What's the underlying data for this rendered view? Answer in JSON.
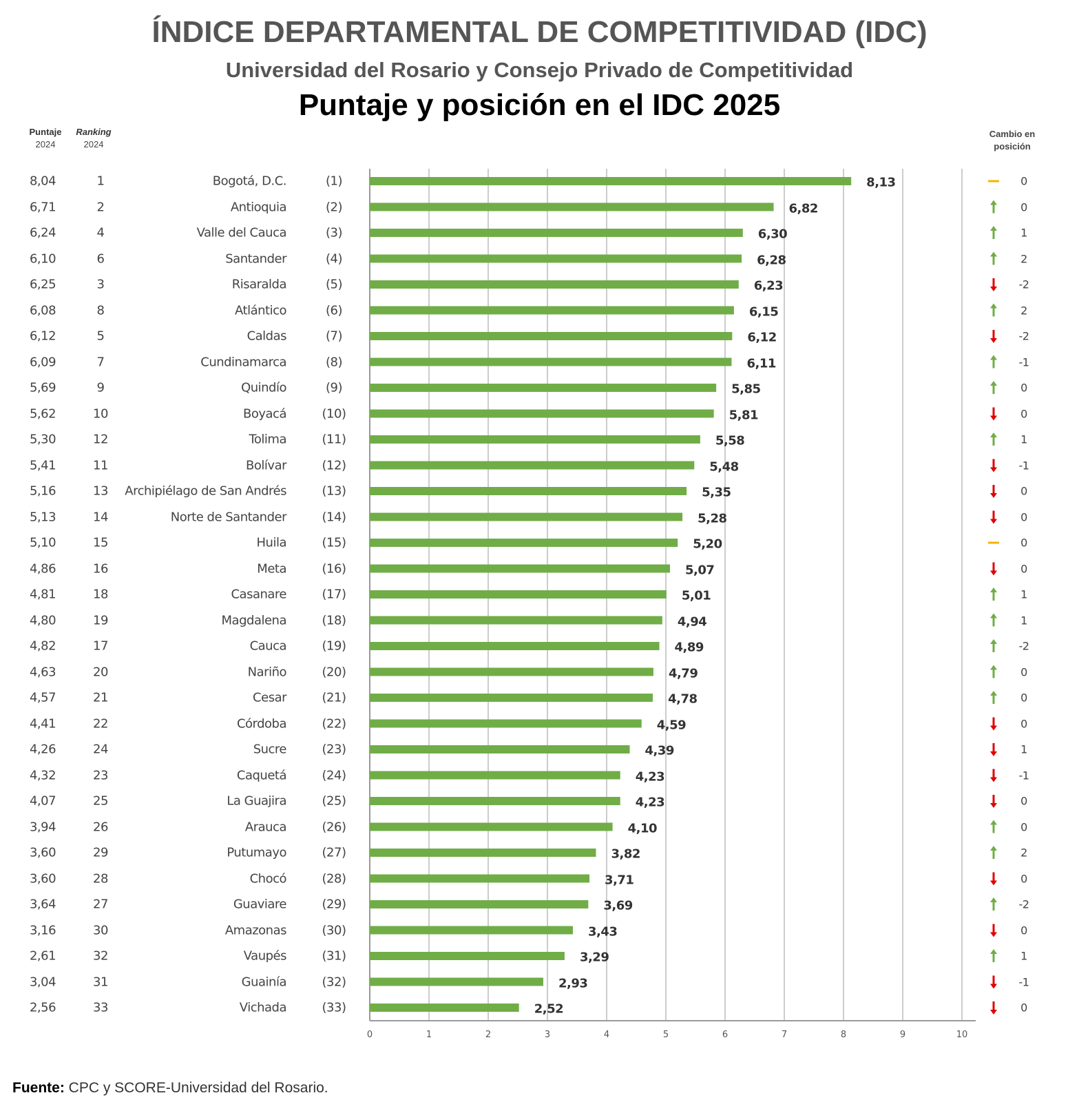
{
  "title": "ÍNDICE DEPARTAMENTAL DE COMPETITIVIDAD (IDC)",
  "subtitle": "Universidad del Rosario y Consejo Privado de Competitividad",
  "chart_title": "Puntaje y posición en el IDC 2025",
  "headers": {
    "score_label": "Puntaje",
    "score_year": "2024",
    "rank_label": "Ranking",
    "rank_year": "2024",
    "change_line1": "Cambio en",
    "change_line2": "posición"
  },
  "source_label": "Fuente:",
  "source_text": "CPC y SCORE-Universidad del Rosario.",
  "colors": {
    "bar": "#70ad47",
    "up": "#70ad47",
    "down": "#e00000",
    "same": "#f5b400"
  },
  "chart_data": {
    "type": "bar",
    "orientation": "horizontal",
    "title": "Puntaje y posición en el IDC 2025",
    "xlim": [
      0,
      10
    ],
    "xticks": [
      "0",
      "1",
      "2",
      "3",
      "4",
      "5",
      "6",
      "7",
      "8",
      "9",
      "10"
    ],
    "grid": true,
    "rows": [
      {
        "score_2024": "8,04",
        "rank_2024": "1",
        "name": "Bogotá, D.C.",
        "rank_2025": "(1)",
        "value": 8.13,
        "label": "8,13",
        "trend": "same",
        "change": "0"
      },
      {
        "score_2024": "6,71",
        "rank_2024": "2",
        "name": "Antioquia",
        "rank_2025": "(2)",
        "value": 6.82,
        "label": "6,82",
        "trend": "up",
        "change": "0"
      },
      {
        "score_2024": "6,24",
        "rank_2024": "4",
        "name": "Valle del Cauca",
        "rank_2025": "(3)",
        "value": 6.3,
        "label": "6,30",
        "trend": "up",
        "change": "1"
      },
      {
        "score_2024": "6,10",
        "rank_2024": "6",
        "name": "Santander",
        "rank_2025": "(4)",
        "value": 6.28,
        "label": "6,28",
        "trend": "up",
        "change": "2"
      },
      {
        "score_2024": "6,25",
        "rank_2024": "3",
        "name": "Risaralda",
        "rank_2025": "(5)",
        "value": 6.23,
        "label": "6,23",
        "trend": "down",
        "change": "-2"
      },
      {
        "score_2024": "6,08",
        "rank_2024": "8",
        "name": "Atlántico",
        "rank_2025": "(6)",
        "value": 6.15,
        "label": "6,15",
        "trend": "up",
        "change": "2"
      },
      {
        "score_2024": "6,12",
        "rank_2024": "5",
        "name": "Caldas",
        "rank_2025": "(7)",
        "value": 6.12,
        "label": "6,12",
        "trend": "down",
        "change": "-2"
      },
      {
        "score_2024": "6,09",
        "rank_2024": "7",
        "name": "Cundinamarca",
        "rank_2025": "(8)",
        "value": 6.11,
        "label": "6,11",
        "trend": "up",
        "change": "-1"
      },
      {
        "score_2024": "5,69",
        "rank_2024": "9",
        "name": "Quindío",
        "rank_2025": "(9)",
        "value": 5.85,
        "label": "5,85",
        "trend": "up",
        "change": "0"
      },
      {
        "score_2024": "5,62",
        "rank_2024": "10",
        "name": "Boyacá",
        "rank_2025": "(10)",
        "value": 5.81,
        "label": "5,81",
        "trend": "down",
        "change": "0"
      },
      {
        "score_2024": "5,30",
        "rank_2024": "12",
        "name": "Tolima",
        "rank_2025": "(11)",
        "value": 5.58,
        "label": "5,58",
        "trend": "up",
        "change": "1"
      },
      {
        "score_2024": "5,41",
        "rank_2024": "11",
        "name": "Bolívar",
        "rank_2025": "(12)",
        "value": 5.48,
        "label": "5,48",
        "trend": "down",
        "change": "-1"
      },
      {
        "score_2024": "5,16",
        "rank_2024": "13",
        "name": "Archipiélago de San Andrés",
        "rank_2025": "(13)",
        "value": 5.35,
        "label": "5,35",
        "trend": "down",
        "change": "0"
      },
      {
        "score_2024": "5,13",
        "rank_2024": "14",
        "name": "Norte de Santander",
        "rank_2025": "(14)",
        "value": 5.28,
        "label": "5,28",
        "trend": "down",
        "change": "0"
      },
      {
        "score_2024": "5,10",
        "rank_2024": "15",
        "name": "Huila",
        "rank_2025": "(15)",
        "value": 5.2,
        "label": "5,20",
        "trend": "same",
        "change": "0"
      },
      {
        "score_2024": "4,86",
        "rank_2024": "16",
        "name": "Meta",
        "rank_2025": "(16)",
        "value": 5.07,
        "label": "5,07",
        "trend": "down",
        "change": "0"
      },
      {
        "score_2024": "4,81",
        "rank_2024": "18",
        "name": "Casanare",
        "rank_2025": "(17)",
        "value": 5.01,
        "label": "5,01",
        "trend": "up",
        "change": "1"
      },
      {
        "score_2024": "4,80",
        "rank_2024": "19",
        "name": "Magdalena",
        "rank_2025": "(18)",
        "value": 4.94,
        "label": "4,94",
        "trend": "up",
        "change": "1"
      },
      {
        "score_2024": "4,82",
        "rank_2024": "17",
        "name": "Cauca",
        "rank_2025": "(19)",
        "value": 4.89,
        "label": "4,89",
        "trend": "up",
        "change": "-2"
      },
      {
        "score_2024": "4,63",
        "rank_2024": "20",
        "name": "Nariño",
        "rank_2025": "(20)",
        "value": 4.79,
        "label": "4,79",
        "trend": "up",
        "change": "0"
      },
      {
        "score_2024": "4,57",
        "rank_2024": "21",
        "name": "Cesar",
        "rank_2025": "(21)",
        "value": 4.78,
        "label": "4,78",
        "trend": "up",
        "change": "0"
      },
      {
        "score_2024": "4,41",
        "rank_2024": "22",
        "name": "Córdoba",
        "rank_2025": "(22)",
        "value": 4.59,
        "label": "4,59",
        "trend": "down",
        "change": "0"
      },
      {
        "score_2024": "4,26",
        "rank_2024": "24",
        "name": "Sucre",
        "rank_2025": "(23)",
        "value": 4.39,
        "label": "4,39",
        "trend": "down",
        "change": "1"
      },
      {
        "score_2024": "4,32",
        "rank_2024": "23",
        "name": "Caquetá",
        "rank_2025": "(24)",
        "value": 4.23,
        "label": "4,23",
        "trend": "down",
        "change": "-1"
      },
      {
        "score_2024": "4,07",
        "rank_2024": "25",
        "name": "La Guajira",
        "rank_2025": "(25)",
        "value": 4.23,
        "label": "4,23",
        "trend": "down",
        "change": "0"
      },
      {
        "score_2024": "3,94",
        "rank_2024": "26",
        "name": "Arauca",
        "rank_2025": "(26)",
        "value": 4.1,
        "label": "4,10",
        "trend": "up",
        "change": "0"
      },
      {
        "score_2024": "3,60",
        "rank_2024": "29",
        "name": "Putumayo",
        "rank_2025": "(27)",
        "value": 3.82,
        "label": "3,82",
        "trend": "up",
        "change": "2"
      },
      {
        "score_2024": "3,60",
        "rank_2024": "28",
        "name": "Chocó",
        "rank_2025": "(28)",
        "value": 3.71,
        "label": "3,71",
        "trend": "down",
        "change": "0"
      },
      {
        "score_2024": "3,64",
        "rank_2024": "27",
        "name": "Guaviare",
        "rank_2025": "(29)",
        "value": 3.69,
        "label": "3,69",
        "trend": "up",
        "change": "-2"
      },
      {
        "score_2024": "3,16",
        "rank_2024": "30",
        "name": "Amazonas",
        "rank_2025": "(30)",
        "value": 3.43,
        "label": "3,43",
        "trend": "down",
        "change": "0"
      },
      {
        "score_2024": "2,61",
        "rank_2024": "32",
        "name": "Vaupés",
        "rank_2025": "(31)",
        "value": 3.29,
        "label": "3,29",
        "trend": "up",
        "change": "1"
      },
      {
        "score_2024": "3,04",
        "rank_2024": "31",
        "name": "Guainía",
        "rank_2025": "(32)",
        "value": 2.93,
        "label": "2,93",
        "trend": "down",
        "change": "-1"
      },
      {
        "score_2024": "2,56",
        "rank_2024": "33",
        "name": "Vichada",
        "rank_2025": "(33)",
        "value": 2.52,
        "label": "2,52",
        "trend": "down",
        "change": "0"
      }
    ]
  }
}
